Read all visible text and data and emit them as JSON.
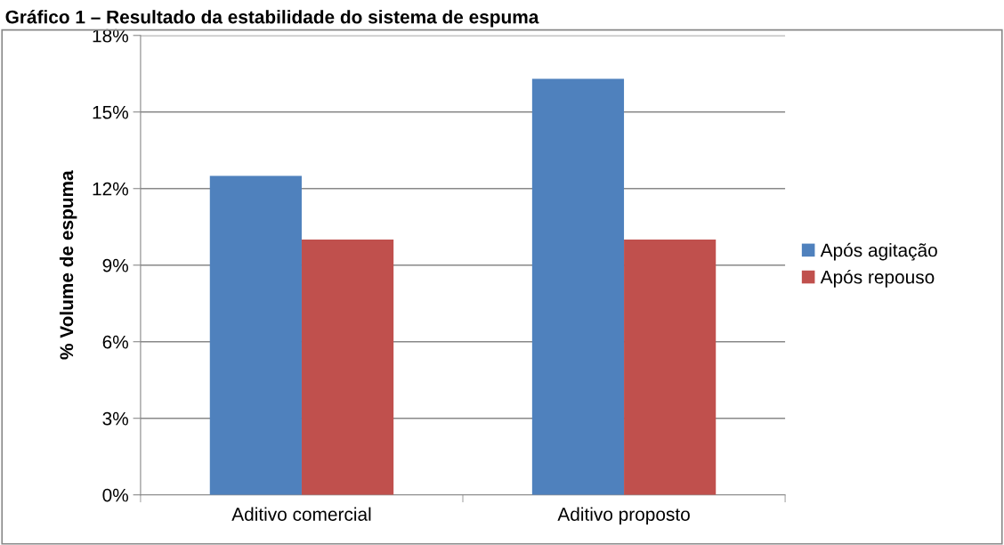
{
  "chart_data": {
    "type": "bar",
    "title": "Gráfico 1 – Resultado da estabilidade do sistema de espuma",
    "ylabel": "% Volume de espuma",
    "categories": [
      "Aditivo comercial",
      "Aditivo proposto"
    ],
    "series": [
      {
        "name": "Após agitação",
        "color": "#4f81bd",
        "values": [
          12.5,
          16.3
        ]
      },
      {
        "name": "Após repouso",
        "color": "#c0504d",
        "values": [
          10,
          10
        ]
      }
    ],
    "ylim": [
      0,
      18
    ],
    "yticks": [
      {
        "value": 0,
        "label": "0%"
      },
      {
        "value": 3,
        "label": "3%"
      },
      {
        "value": 6,
        "label": "6%"
      },
      {
        "value": 9,
        "label": "9%"
      },
      {
        "value": 12,
        "label": "12%"
      },
      {
        "value": 15,
        "label": "15%"
      },
      {
        "value": 18,
        "label": "18%"
      }
    ],
    "grid": "y",
    "legend": "right"
  }
}
